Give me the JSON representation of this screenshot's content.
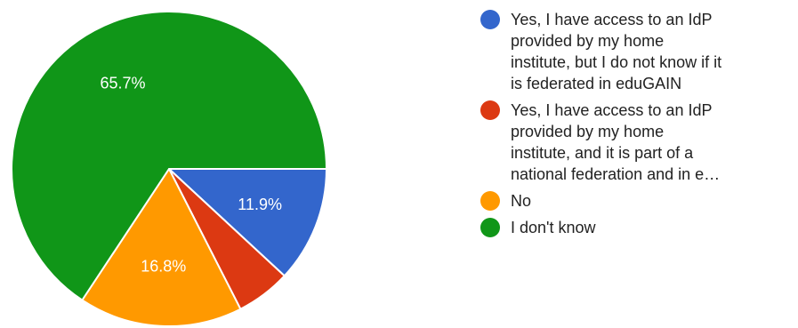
{
  "chart_data": {
    "type": "pie",
    "title": "",
    "slices": [
      {
        "label": "Yes, I have access to an IdP provided by my home institute, but I do not know if it is federated in eduGAIN",
        "legend_lines": [
          "Yes, I have access to an IdP",
          "provided by my home",
          "institute, but I do not know if it",
          "is federated in eduGAIN"
        ],
        "value": 11.9,
        "value_label": "11.9%",
        "color": "#3366cc"
      },
      {
        "label": "Yes, I have access to an IdP provided by my home institute, and it is part of a national federation and in e…",
        "legend_lines": [
          "Yes, I have access to an IdP",
          "provided by my home",
          "institute, and it is part of a",
          "national federation and in e…"
        ],
        "value": 5.6,
        "value_label": "",
        "color": "#dc3912"
      },
      {
        "label": "No",
        "legend_lines": [
          "No"
        ],
        "value": 16.8,
        "value_label": "16.8%",
        "color": "#ff9900"
      },
      {
        "label": "I don't know",
        "legend_lines": [
          "I don't know"
        ],
        "value": 65.7,
        "value_label": "65.7%",
        "color": "#109618"
      }
    ],
    "legend_position": "right"
  }
}
